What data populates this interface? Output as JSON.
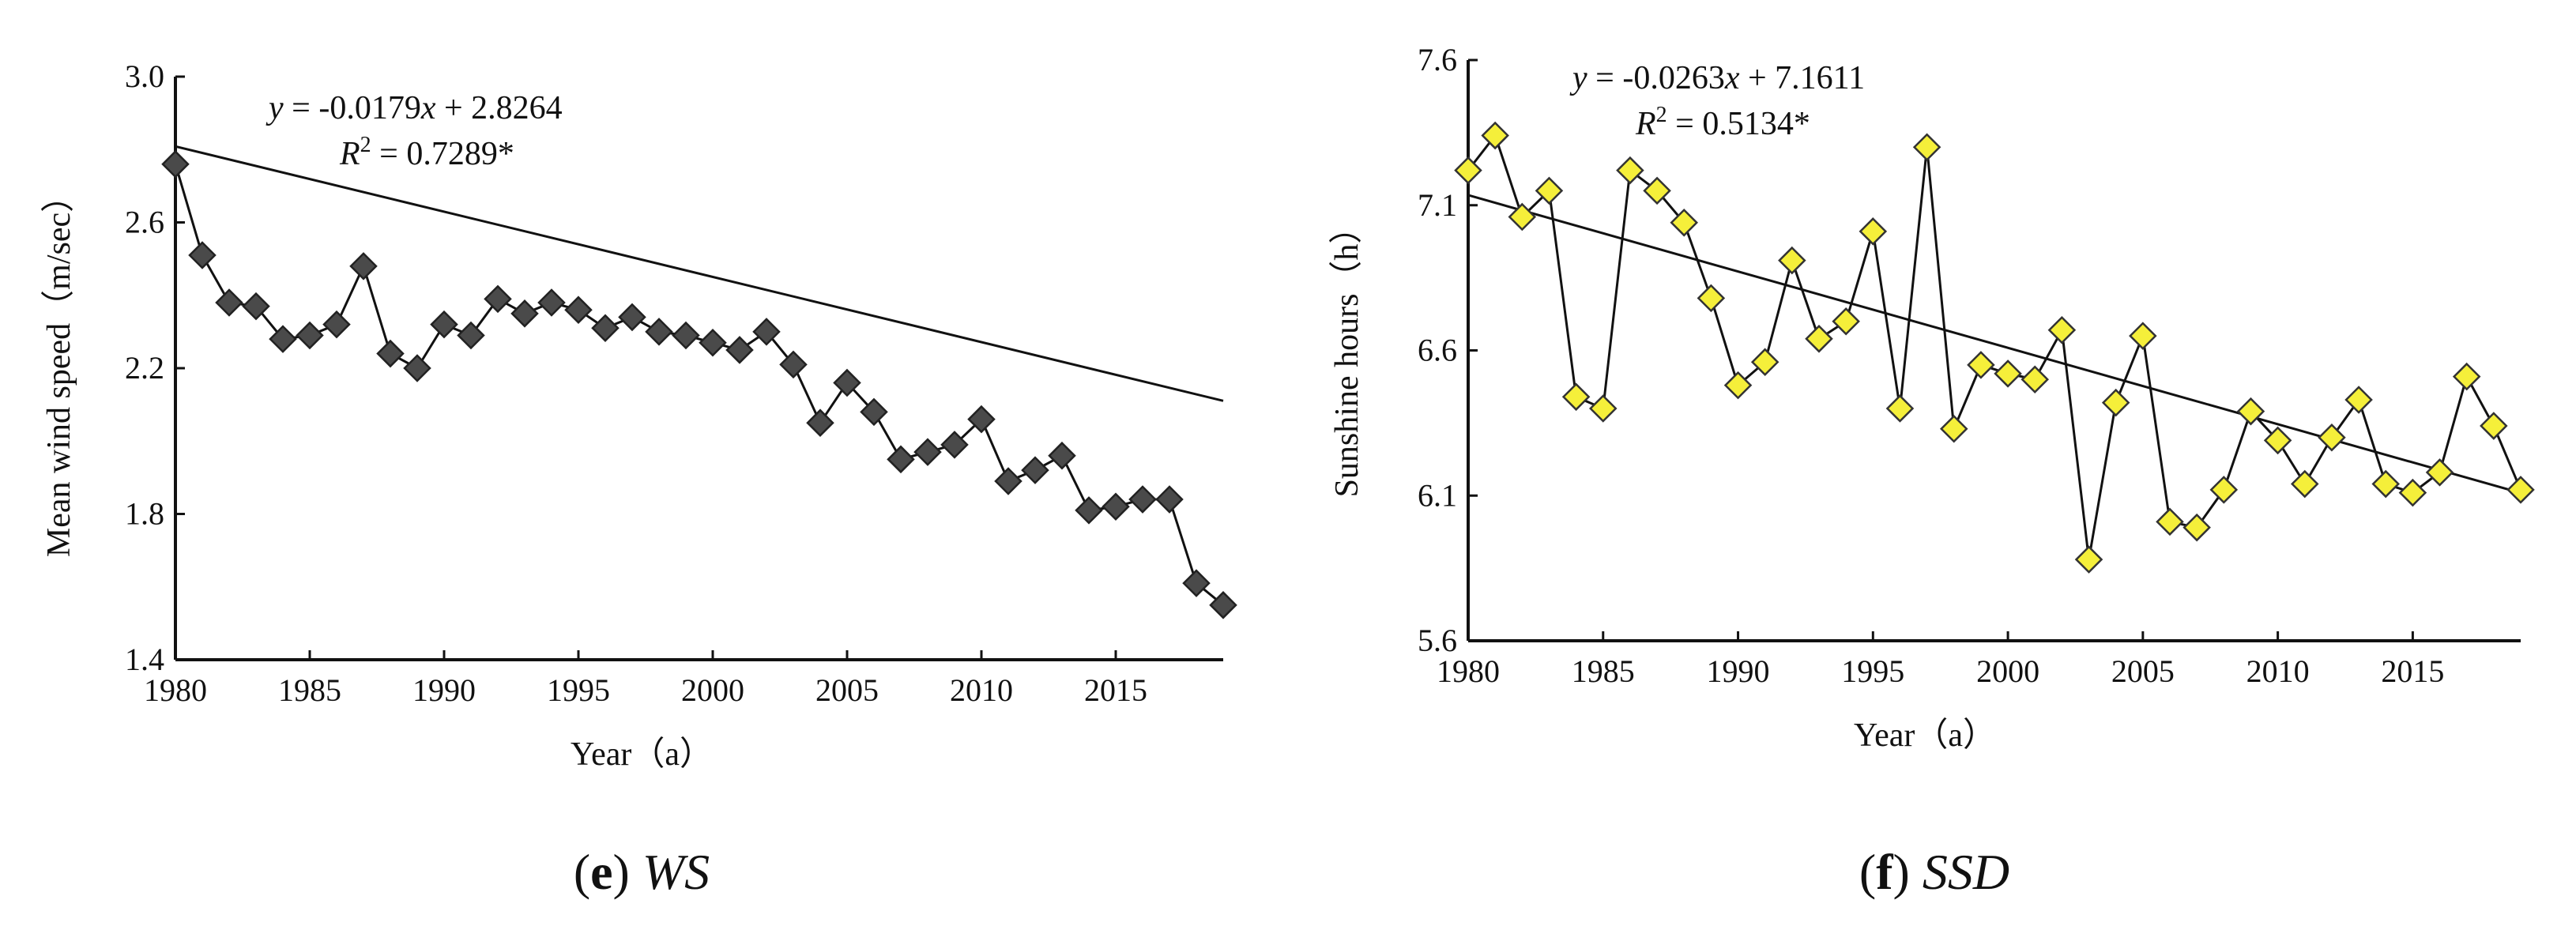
{
  "chart_data": [
    {
      "type": "line",
      "panel_letter": "e",
      "caption_text": "WS",
      "xlabel": "Year（a）",
      "ylabel": "Mean wind speed（m/sec）",
      "xlim": [
        1980,
        2019
      ],
      "ylim": [
        1.4,
        3.0
      ],
      "xticks": [
        "1980",
        "1985",
        "1990",
        "1995",
        "2000",
        "2005",
        "2010",
        "2015"
      ],
      "yticks": [
        "1.4",
        "1.8",
        "2.2",
        "2.6",
        "3.0"
      ],
      "equation": {
        "prefix": "y",
        "body": " = -0.0179",
        "var": "x",
        "tail": " + 2.8264"
      },
      "r2": {
        "prefix": "R",
        "sup": "2",
        "value": " = 0.7289*"
      },
      "trend": {
        "slope": -0.0179,
        "intercept": 2.8264
      },
      "marker": {
        "shape": "diamond",
        "fill": "#4a4a4a",
        "stroke": "#222222"
      },
      "x": [
        1980,
        1981,
        1982,
        1983,
        1984,
        1985,
        1986,
        1987,
        1988,
        1989,
        1990,
        1991,
        1992,
        1993,
        1994,
        1995,
        1996,
        1997,
        1998,
        1999,
        2000,
        2001,
        2002,
        2003,
        2004,
        2005,
        2006,
        2007,
        2008,
        2009,
        2010,
        2011,
        2012,
        2013,
        2014,
        2015,
        2016,
        2017,
        2018,
        2019
      ],
      "values": [
        2.76,
        2.51,
        2.38,
        2.37,
        2.28,
        2.29,
        2.32,
        2.48,
        2.24,
        2.2,
        2.32,
        2.29,
        2.39,
        2.35,
        2.38,
        2.36,
        2.31,
        2.34,
        2.3,
        2.29,
        2.27,
        2.25,
        2.3,
        2.21,
        2.05,
        2.16,
        2.08,
        1.95,
        1.97,
        1.99,
        2.06,
        1.89,
        1.92,
        1.96,
        1.81,
        1.82,
        1.84,
        1.84,
        1.61,
        1.55
      ]
    },
    {
      "type": "line",
      "panel_letter": "f",
      "caption_text": "SSD",
      "xlabel": "Year（a）",
      "ylabel": "Sunshine hours（h）",
      "xlim": [
        1980,
        2019
      ],
      "ylim": [
        5.6,
        7.6
      ],
      "xticks": [
        "1980",
        "1985",
        "1990",
        "1995",
        "2000",
        "2005",
        "2010",
        "2015"
      ],
      "yticks": [
        "5.6",
        "6.1",
        "6.6",
        "7.1",
        "7.6"
      ],
      "equation": {
        "prefix": "y",
        "body": " = -0.0263",
        "var": "x",
        "tail": " + 7.1611"
      },
      "r2": {
        "prefix": "R",
        "sup": "2",
        "value": " = 0.5134*"
      },
      "trend": {
        "slope": -0.0263,
        "intercept": 7.1611
      },
      "marker": {
        "shape": "diamond",
        "fill": "#f5ef3a",
        "stroke": "#333333"
      },
      "x": [
        1980,
        1981,
        1982,
        1983,
        1984,
        1985,
        1986,
        1987,
        1988,
        1989,
        1990,
        1991,
        1992,
        1993,
        1994,
        1995,
        1996,
        1997,
        1998,
        1999,
        2000,
        2001,
        2002,
        2003,
        2004,
        2005,
        2006,
        2007,
        2008,
        2009,
        2010,
        2011,
        2012,
        2013,
        2014,
        2015,
        2016,
        2017,
        2018,
        2019
      ],
      "values": [
        7.22,
        7.34,
        7.06,
        7.15,
        6.44,
        6.4,
        7.22,
        7.15,
        7.04,
        6.78,
        6.48,
        6.56,
        6.91,
        6.64,
        6.7,
        7.01,
        6.4,
        7.3,
        6.33,
        6.55,
        6.52,
        6.5,
        6.67,
        5.88,
        6.42,
        6.65,
        6.01,
        5.99,
        6.12,
        6.39,
        6.29,
        6.14,
        6.3,
        6.43,
        6.14,
        6.11,
        6.18,
        6.51,
        6.34,
        6.12
      ]
    }
  ]
}
